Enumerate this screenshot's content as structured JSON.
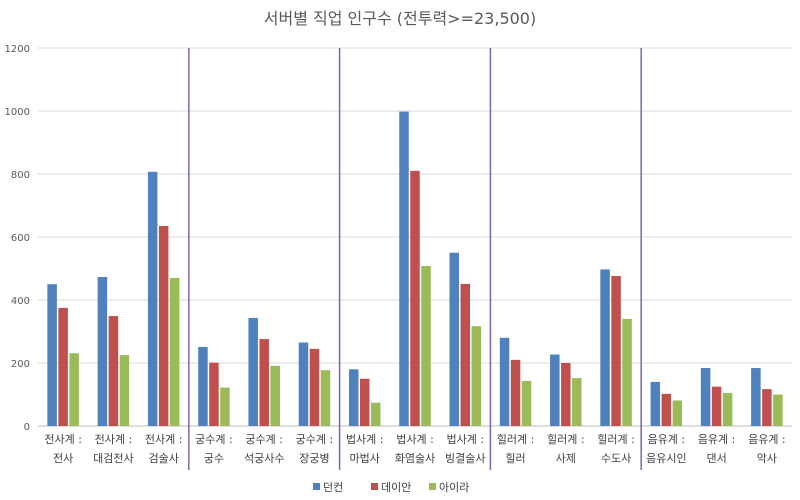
{
  "chart_data": {
    "type": "bar",
    "title": "서버별 직업 인구수 (전투력>=23,500)",
    "xlabel": "",
    "ylabel": "",
    "ylim": [
      0,
      1200
    ],
    "yticks": [
      "0",
      "200",
      "400",
      "600",
      "800",
      "1000",
      "1200"
    ],
    "grid": true,
    "legend_position": "bottom",
    "categories": [
      [
        "전사계 :",
        "전사"
      ],
      [
        "전사계 :",
        "대검전사"
      ],
      [
        "전사계 :",
        "검술사"
      ],
      [
        "궁수계 :",
        "궁수"
      ],
      [
        "궁수계 :",
        "석궁사수"
      ],
      [
        "궁수계 :",
        "장궁병"
      ],
      [
        "법사계 :",
        "마법사"
      ],
      [
        "법사계 :",
        "화염술사"
      ],
      [
        "법사계 :",
        "빙결술사"
      ],
      [
        "힐러계 :",
        "힐러"
      ],
      [
        "힐러계 :",
        "사제"
      ],
      [
        "힐러계 :",
        "수도사"
      ],
      [
        "음유계 :",
        "음유시인"
      ],
      [
        "음유계 :",
        "댄서"
      ],
      [
        "음유계 :",
        "악사"
      ]
    ],
    "group_separators_after": [
      2,
      5,
      8,
      11
    ],
    "series": [
      {
        "name": "던컨",
        "color": "#4F81BD",
        "values": [
          450,
          473,
          807,
          251,
          343,
          265,
          180,
          998,
          550,
          280,
          227,
          497,
          140,
          184,
          184
        ]
      },
      {
        "name": "데이안",
        "color": "#C0504D",
        "values": [
          375,
          349,
          635,
          201,
          276,
          245,
          150,
          810,
          451,
          210,
          200,
          476,
          102,
          125,
          117
        ]
      },
      {
        "name": "아이라",
        "color": "#9BBB59",
        "values": [
          231,
          225,
          470,
          122,
          191,
          177,
          74,
          508,
          317,
          143,
          152,
          340,
          81,
          105,
          100
        ]
      }
    ],
    "separator_color": "#7F64A8"
  }
}
